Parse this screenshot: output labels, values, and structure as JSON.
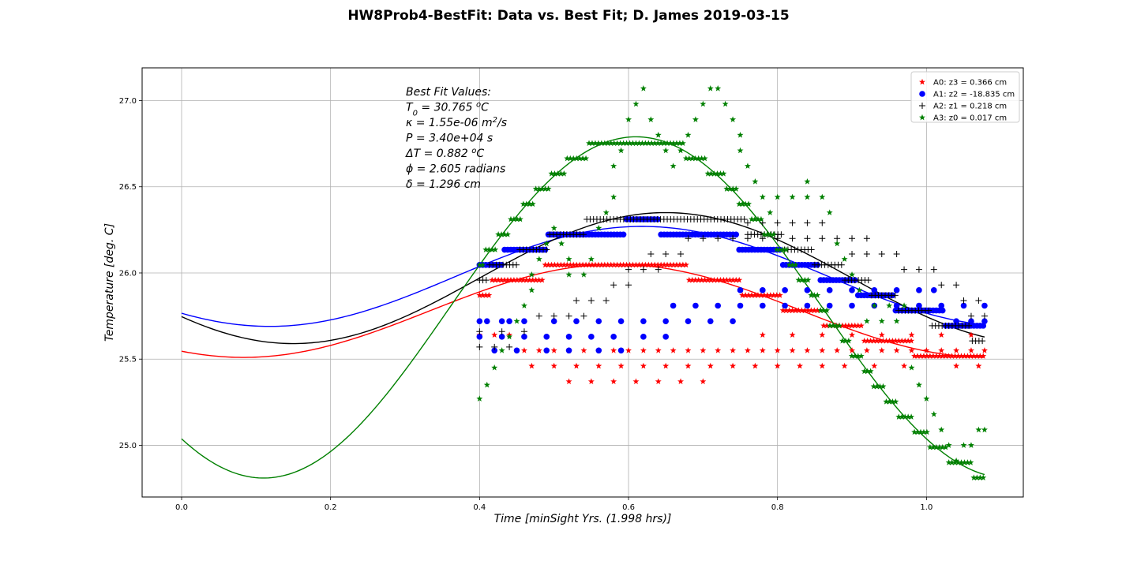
{
  "figure": {
    "title": "HW8Prob4-BestFit: Data vs. Best Fit; D. James 2019-03-15"
  },
  "annotation": {
    "lines": [
      {
        "parts": [
          {
            "t": "Best Fit Values:"
          }
        ]
      },
      {
        "parts": [
          {
            "t": "T"
          },
          {
            "t": "0",
            "sub": true
          },
          {
            "t": " = 30.765 "
          },
          {
            "t": "o",
            "sup": true
          },
          {
            "t": "C"
          }
        ]
      },
      {
        "parts": [
          {
            "t": "κ =  1.55e-06 m"
          },
          {
            "t": "2",
            "sup": true
          },
          {
            "t": "/s"
          }
        ]
      },
      {
        "parts": [
          {
            "t": "P =  3.40e+04 s"
          }
        ]
      },
      {
        "parts": [
          {
            "t": "ΔT =  0.882 "
          },
          {
            "t": "o",
            "sup": true
          },
          {
            "t": "C"
          }
        ]
      },
      {
        "parts": [
          {
            "t": "ϕ =  2.605 radians"
          }
        ]
      },
      {
        "parts": [
          {
            "t": "δ =  1.296 cm"
          }
        ]
      }
    ]
  },
  "chart_data": {
    "type": "scatter",
    "xlabel": "Time [minSight Yrs. (1.998 hrs)]",
    "ylabel": "Temperature [deg. C]",
    "xlim": [
      -0.053,
      1.13
    ],
    "ylim": [
      24.7,
      27.19
    ],
    "xticks": [
      0.0,
      0.2,
      0.4,
      0.6,
      0.8,
      1.0
    ],
    "xtick_labels": [
      "0.0",
      "0.2",
      "0.4",
      "0.6",
      "0.8",
      "1.0"
    ],
    "yticks": [
      25.0,
      25.5,
      26.0,
      26.5,
      27.0
    ],
    "ytick_labels": [
      "25.0",
      "25.5",
      "26.0",
      "26.5",
      "27.0"
    ],
    "grid": true,
    "legend_position": "top-right",
    "data_x_range": [
      0.4,
      1.078
    ],
    "series": [
      {
        "name": "A0: z3 = 0.366 cm",
        "color": "#ff0000",
        "marker": "star",
        "fit": {
          "T": 25.78,
          "A": 0.27,
          "phase": 2.62
        },
        "points": [
          [
            0.4,
            25.64
          ],
          [
            0.42,
            25.64
          ],
          [
            0.44,
            25.64
          ],
          [
            0.46,
            25.55
          ],
          [
            0.48,
            25.55
          ],
          [
            0.5,
            25.55
          ],
          [
            0.52,
            25.55
          ],
          [
            0.54,
            25.55
          ],
          [
            0.56,
            25.55
          ],
          [
            0.58,
            25.55
          ],
          [
            0.6,
            25.55
          ],
          [
            0.62,
            25.55
          ],
          [
            0.64,
            25.55
          ],
          [
            0.66,
            25.55
          ],
          [
            0.68,
            25.55
          ],
          [
            0.7,
            25.55
          ],
          [
            0.72,
            25.55
          ],
          [
            0.74,
            25.55
          ],
          [
            0.76,
            25.55
          ],
          [
            0.78,
            25.55
          ],
          [
            0.8,
            25.55
          ],
          [
            0.82,
            25.55
          ],
          [
            0.84,
            25.55
          ],
          [
            0.86,
            25.55
          ],
          [
            0.88,
            25.55
          ],
          [
            0.9,
            25.55
          ],
          [
            0.92,
            25.55
          ],
          [
            0.94,
            25.55
          ],
          [
            0.96,
            25.55
          ],
          [
            0.98,
            25.55
          ],
          [
            1.0,
            25.55
          ],
          [
            1.02,
            25.55
          ],
          [
            1.04,
            25.55
          ],
          [
            1.06,
            25.55
          ],
          [
            1.078,
            25.55
          ],
          [
            0.47,
            25.46
          ],
          [
            0.5,
            25.46
          ],
          [
            0.53,
            25.46
          ],
          [
            0.56,
            25.46
          ],
          [
            0.59,
            25.46
          ],
          [
            0.62,
            25.46
          ],
          [
            0.65,
            25.46
          ],
          [
            0.68,
            25.46
          ],
          [
            0.71,
            25.46
          ],
          [
            0.74,
            25.46
          ],
          [
            0.77,
            25.46
          ],
          [
            0.8,
            25.46
          ],
          [
            0.83,
            25.46
          ],
          [
            0.86,
            25.46
          ],
          [
            0.89,
            25.46
          ],
          [
            0.93,
            25.46
          ],
          [
            0.97,
            25.46
          ],
          [
            1.04,
            25.46
          ],
          [
            1.07,
            25.46
          ],
          [
            0.78,
            25.64
          ],
          [
            0.82,
            25.64
          ],
          [
            0.86,
            25.64
          ],
          [
            0.9,
            25.64
          ],
          [
            0.94,
            25.64
          ],
          [
            0.98,
            25.64
          ],
          [
            1.02,
            25.64
          ],
          [
            1.06,
            25.64
          ],
          [
            0.52,
            25.37
          ],
          [
            0.55,
            25.37
          ],
          [
            0.58,
            25.37
          ],
          [
            0.61,
            25.37
          ],
          [
            0.64,
            25.37
          ],
          [
            0.67,
            25.37
          ],
          [
            0.7,
            25.37
          ]
        ]
      },
      {
        "name": "A1: z2 = -18.835 cm",
        "color": "#0000ff",
        "marker": "circle",
        "fit": {
          "T": 25.98,
          "A": 0.29,
          "phase": 2.4
        },
        "points": [
          [
            0.4,
            25.72
          ],
          [
            0.41,
            25.72
          ],
          [
            0.43,
            25.72
          ],
          [
            0.44,
            25.72
          ],
          [
            0.4,
            25.63
          ],
          [
            0.43,
            25.63
          ],
          [
            0.46,
            25.63
          ],
          [
            0.49,
            25.63
          ],
          [
            0.52,
            25.63
          ],
          [
            0.55,
            25.63
          ],
          [
            0.58,
            25.63
          ],
          [
            0.62,
            25.63
          ],
          [
            0.65,
            25.63
          ],
          [
            0.42,
            25.55
          ],
          [
            0.45,
            25.55
          ],
          [
            0.49,
            25.55
          ],
          [
            0.52,
            25.55
          ],
          [
            0.56,
            25.55
          ],
          [
            0.59,
            25.55
          ],
          [
            0.46,
            25.72
          ],
          [
            0.5,
            25.72
          ],
          [
            0.53,
            25.72
          ],
          [
            0.56,
            25.72
          ],
          [
            0.59,
            25.72
          ],
          [
            0.62,
            25.72
          ],
          [
            0.65,
            25.72
          ],
          [
            0.68,
            25.72
          ],
          [
            0.71,
            25.72
          ],
          [
            0.74,
            25.72
          ],
          [
            0.66,
            25.81
          ],
          [
            0.69,
            25.81
          ],
          [
            0.72,
            25.81
          ],
          [
            0.75,
            25.81
          ],
          [
            0.78,
            25.81
          ],
          [
            0.81,
            25.81
          ],
          [
            0.84,
            25.81
          ],
          [
            0.87,
            25.81
          ],
          [
            0.9,
            25.81
          ],
          [
            0.93,
            25.81
          ],
          [
            0.96,
            25.81
          ],
          [
            0.99,
            25.81
          ],
          [
            1.02,
            25.81
          ],
          [
            1.05,
            25.81
          ],
          [
            1.078,
            25.81
          ],
          [
            0.75,
            25.9
          ],
          [
            0.78,
            25.9
          ],
          [
            0.81,
            25.9
          ],
          [
            0.84,
            25.9
          ],
          [
            0.87,
            25.9
          ],
          [
            0.9,
            25.9
          ],
          [
            0.93,
            25.9
          ],
          [
            0.96,
            25.9
          ],
          [
            0.99,
            25.9
          ],
          [
            1.01,
            25.9
          ],
          [
            1.04,
            25.72
          ],
          [
            1.06,
            25.72
          ],
          [
            1.078,
            25.72
          ]
        ]
      },
      {
        "name": "A2: z1 = 0.218 cm",
        "color": "#000000",
        "marker": "plus",
        "fit": {
          "T": 25.97,
          "A": 0.38,
          "phase": 2.2
        },
        "points": [
          [
            0.4,
            25.57
          ],
          [
            0.42,
            25.57
          ],
          [
            0.44,
            25.57
          ],
          [
            0.4,
            25.66
          ],
          [
            0.43,
            25.66
          ],
          [
            0.46,
            25.66
          ],
          [
            0.48,
            25.75
          ],
          [
            0.5,
            25.75
          ],
          [
            0.52,
            25.75
          ],
          [
            0.54,
            25.75
          ],
          [
            0.53,
            25.84
          ],
          [
            0.55,
            25.84
          ],
          [
            0.57,
            25.84
          ],
          [
            0.58,
            25.93
          ],
          [
            0.6,
            25.93
          ],
          [
            0.6,
            26.02
          ],
          [
            0.62,
            26.02
          ],
          [
            0.64,
            26.02
          ],
          [
            0.63,
            26.11
          ],
          [
            0.65,
            26.11
          ],
          [
            0.67,
            26.11
          ],
          [
            0.68,
            26.2
          ],
          [
            0.7,
            26.2
          ],
          [
            0.72,
            26.2
          ],
          [
            0.74,
            26.2
          ],
          [
            0.76,
            26.2
          ],
          [
            0.78,
            26.2
          ],
          [
            0.8,
            26.2
          ],
          [
            0.82,
            26.2
          ],
          [
            0.84,
            26.2
          ],
          [
            0.86,
            26.2
          ],
          [
            0.88,
            26.2
          ],
          [
            0.9,
            26.2
          ],
          [
            0.92,
            26.2
          ],
          [
            0.76,
            26.29
          ],
          [
            0.78,
            26.29
          ],
          [
            0.8,
            26.29
          ],
          [
            0.82,
            26.29
          ],
          [
            0.84,
            26.29
          ],
          [
            0.86,
            26.29
          ],
          [
            0.9,
            26.11
          ],
          [
            0.92,
            26.11
          ],
          [
            0.94,
            26.11
          ],
          [
            0.96,
            26.11
          ],
          [
            0.97,
            26.02
          ],
          [
            0.99,
            26.02
          ],
          [
            1.01,
            26.02
          ],
          [
            1.02,
            25.93
          ],
          [
            1.04,
            25.93
          ],
          [
            1.05,
            25.84
          ],
          [
            1.07,
            25.84
          ],
          [
            1.06,
            25.75
          ],
          [
            1.078,
            25.75
          ]
        ]
      },
      {
        "name": "A3: z0 = 0.017 cm",
        "color": "#008000",
        "marker": "star",
        "fit": {
          "T": 25.8,
          "A": 0.99,
          "phase": 2.45
        },
        "points": [
          [
            0.4,
            25.27
          ],
          [
            0.41,
            25.35
          ],
          [
            0.42,
            25.45
          ],
          [
            0.43,
            25.55
          ],
          [
            0.44,
            25.63
          ],
          [
            0.45,
            25.72
          ],
          [
            0.46,
            25.81
          ],
          [
            0.47,
            25.9
          ],
          [
            0.47,
            25.99
          ],
          [
            0.48,
            26.08
          ],
          [
            0.49,
            26.17
          ],
          [
            0.5,
            26.26
          ],
          [
            0.51,
            26.17
          ],
          [
            0.52,
            26.08
          ],
          [
            0.52,
            25.99
          ],
          [
            0.54,
            25.99
          ],
          [
            0.55,
            26.08
          ],
          [
            0.56,
            26.26
          ],
          [
            0.57,
            26.35
          ],
          [
            0.58,
            26.44
          ],
          [
            0.58,
            26.62
          ],
          [
            0.59,
            26.71
          ],
          [
            0.6,
            26.89
          ],
          [
            0.61,
            26.98
          ],
          [
            0.62,
            27.07
          ],
          [
            0.63,
            26.89
          ],
          [
            0.64,
            26.8
          ],
          [
            0.65,
            26.71
          ],
          [
            0.66,
            26.62
          ],
          [
            0.67,
            26.71
          ],
          [
            0.68,
            26.8
          ],
          [
            0.69,
            26.89
          ],
          [
            0.7,
            26.98
          ],
          [
            0.71,
            27.07
          ],
          [
            0.72,
            27.07
          ],
          [
            0.73,
            26.98
          ],
          [
            0.74,
            26.89
          ],
          [
            0.75,
            26.8
          ],
          [
            0.75,
            26.71
          ],
          [
            0.76,
            26.62
          ],
          [
            0.77,
            26.53
          ],
          [
            0.78,
            26.44
          ],
          [
            0.79,
            26.35
          ],
          [
            0.8,
            26.44
          ],
          [
            0.82,
            26.44
          ],
          [
            0.84,
            26.44
          ],
          [
            0.86,
            26.44
          ],
          [
            0.84,
            26.53
          ],
          [
            0.87,
            26.35
          ],
          [
            0.88,
            26.17
          ],
          [
            0.89,
            26.08
          ],
          [
            0.9,
            25.99
          ],
          [
            0.91,
            25.9
          ],
          [
            0.92,
            25.72
          ],
          [
            0.94,
            25.72
          ],
          [
            0.96,
            25.72
          ],
          [
            0.93,
            25.81
          ],
          [
            0.95,
            25.81
          ],
          [
            0.97,
            25.81
          ],
          [
            0.98,
            25.45
          ],
          [
            0.99,
            25.35
          ],
          [
            1.0,
            25.27
          ],
          [
            1.01,
            25.18
          ],
          [
            1.02,
            25.09
          ],
          [
            1.03,
            25.0
          ],
          [
            1.04,
            24.91
          ],
          [
            1.05,
            25.0
          ],
          [
            1.06,
            25.0
          ],
          [
            1.07,
            25.09
          ],
          [
            1.078,
            25.09
          ]
        ]
      }
    ]
  }
}
